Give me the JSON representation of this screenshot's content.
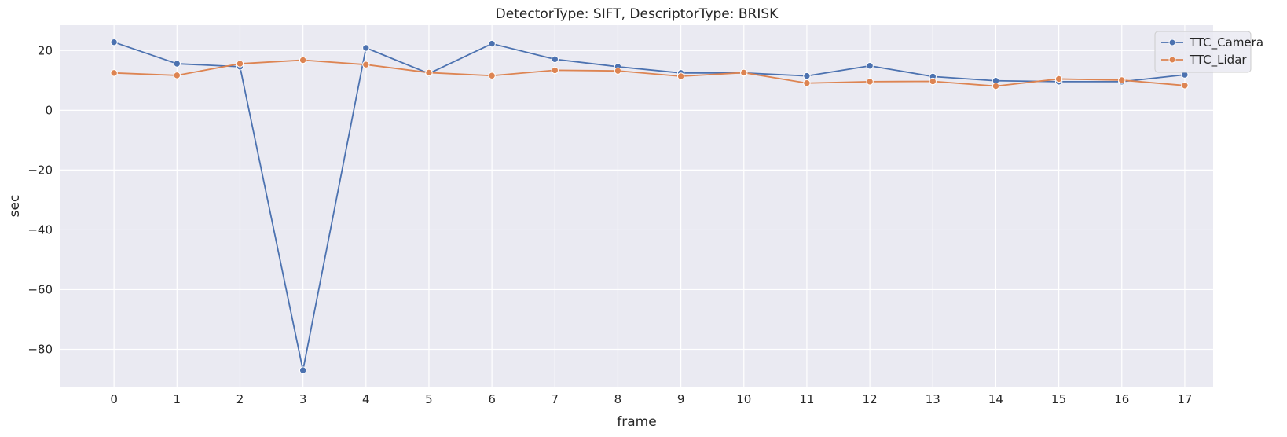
{
  "chart_data": {
    "type": "line",
    "title": "DetectorType: SIFT, DescriptorType: BRISK",
    "xlabel": "frame",
    "ylabel": "sec",
    "x": [
      0,
      1,
      2,
      3,
      4,
      5,
      6,
      7,
      8,
      9,
      10,
      11,
      12,
      13,
      14,
      15,
      16,
      17
    ],
    "xlim": [
      -0.85,
      17.45
    ],
    "ylim": [
      -92.5,
      28.5
    ],
    "yticks": [
      20,
      0,
      -20,
      -40,
      -60,
      -80
    ],
    "yticklabels": [
      "20",
      "0",
      "−20",
      "−40",
      "−60",
      "−80"
    ],
    "grid": true,
    "legend_position": "top-right",
    "series": [
      {
        "name": "TTC_Camera",
        "color": "#4c72b0",
        "marker": "circle",
        "values": [
          22.8,
          15.6,
          14.6,
          -87.0,
          20.9,
          12.3,
          22.3,
          17.1,
          14.6,
          12.5,
          12.5,
          11.5,
          14.9,
          11.3,
          9.9,
          9.6,
          9.6,
          11.9
        ]
      },
      {
        "name": "TTC_Lidar",
        "color": "#dd8452",
        "marker": "circle",
        "values": [
          12.5,
          11.7,
          15.6,
          16.8,
          15.3,
          12.6,
          11.6,
          13.4,
          13.2,
          11.4,
          12.6,
          9.1,
          9.6,
          9.7,
          8.1,
          10.5,
          10.1,
          8.3
        ]
      }
    ]
  }
}
